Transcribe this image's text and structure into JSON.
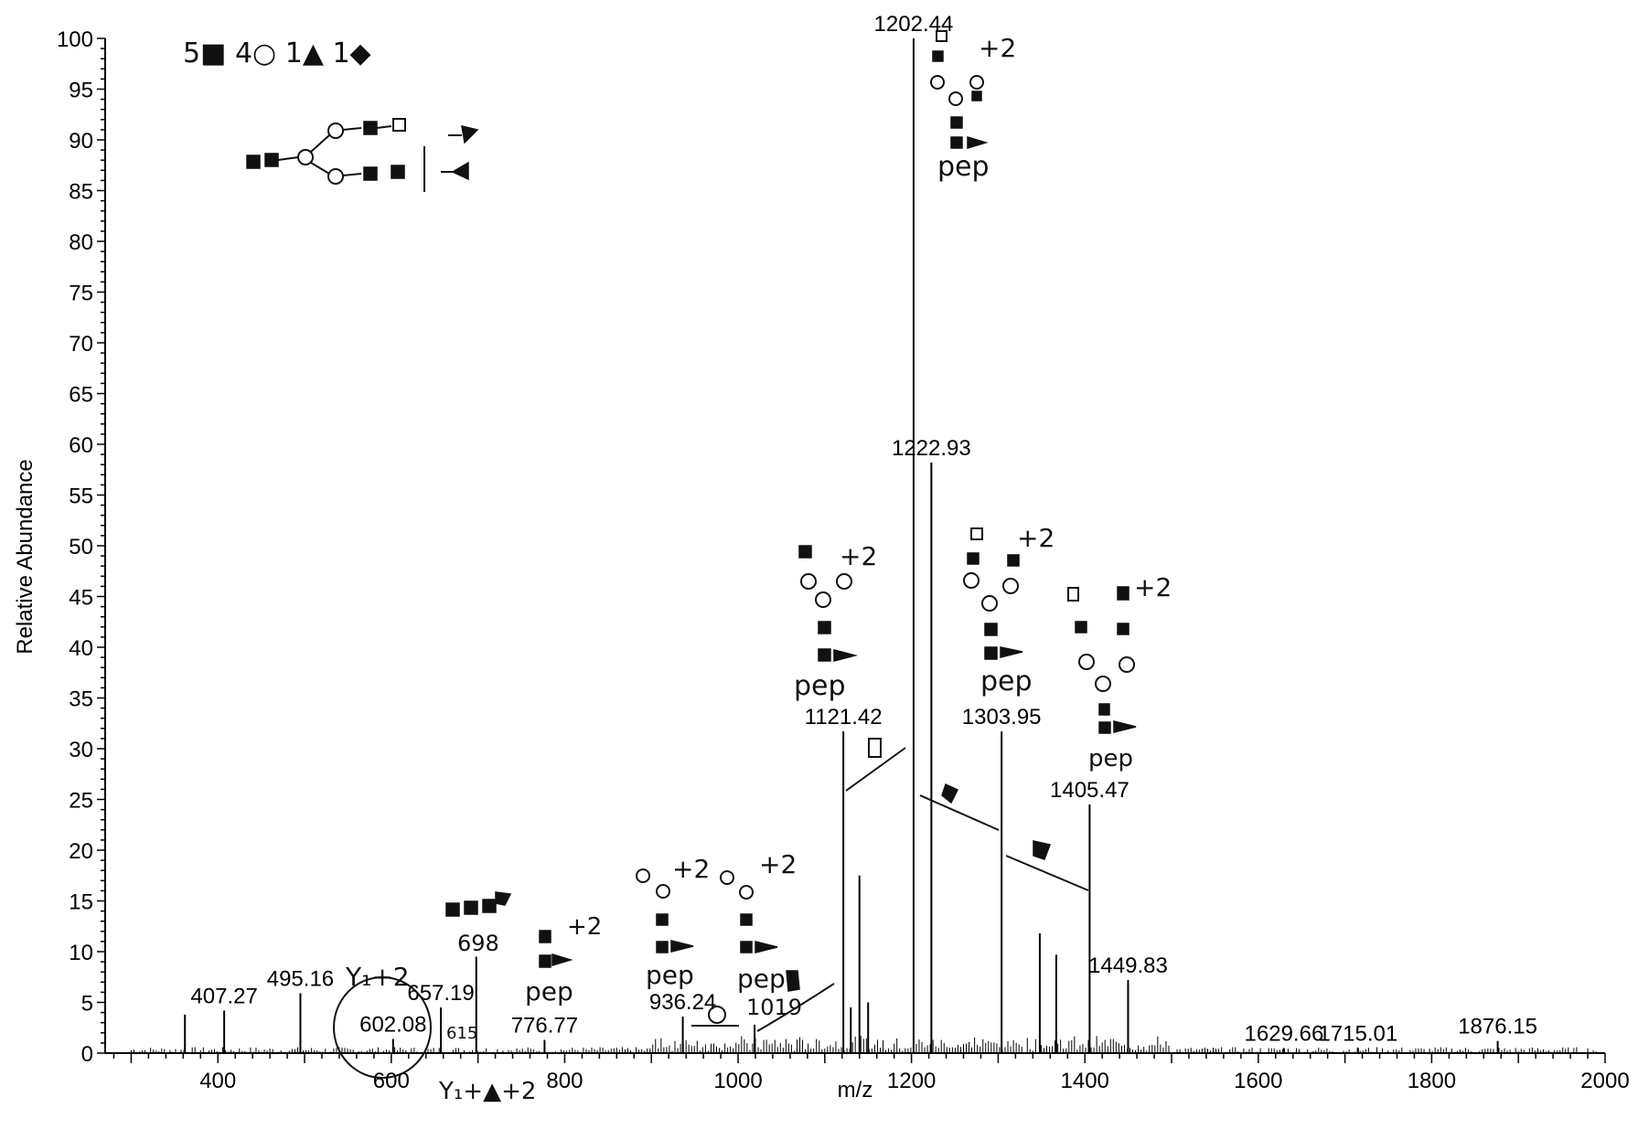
{
  "chart_data": {
    "type": "line",
    "xlabel": "m/z",
    "ylabel": "Relative Abundance",
    "xlim": [
      270,
      2000
    ],
    "ylim": [
      0,
      100
    ],
    "x_ticks": [
      400,
      600,
      800,
      1000,
      1200,
      1400,
      1600,
      1800,
      2000
    ],
    "y_ticks": [
      0,
      5,
      10,
      15,
      20,
      25,
      30,
      35,
      40,
      45,
      50,
      55,
      60,
      65,
      70,
      75,
      80,
      85,
      90,
      95,
      100
    ],
    "peaks": [
      {
        "mz": 362.0,
        "intensity": 3.8,
        "label": ""
      },
      {
        "mz": 407.27,
        "intensity": 4.2,
        "label": "407.27"
      },
      {
        "mz": 495.16,
        "intensity": 5.9,
        "label": "495.16"
      },
      {
        "mz": 602.08,
        "intensity": 1.4,
        "label": "602.08"
      },
      {
        "mz": 657.19,
        "intensity": 4.5,
        "label": "657.19"
      },
      {
        "mz": 698.0,
        "intensity": 9.5,
        "label": ""
      },
      {
        "mz": 776.77,
        "intensity": 1.3,
        "label": "776.77"
      },
      {
        "mz": 936.24,
        "intensity": 3.6,
        "label": "936.24"
      },
      {
        "mz": 1019.0,
        "intensity": 2.8,
        "label": ""
      },
      {
        "mz": 1121.42,
        "intensity": 31.7,
        "label": "1121.42"
      },
      {
        "mz": 1130.0,
        "intensity": 4.5,
        "label": ""
      },
      {
        "mz": 1140.0,
        "intensity": 17.5,
        "label": ""
      },
      {
        "mz": 1150.0,
        "intensity": 5.0,
        "label": ""
      },
      {
        "mz": 1202.44,
        "intensity": 100,
        "label": "1202.44"
      },
      {
        "mz": 1222.93,
        "intensity": 58.2,
        "label": "1222.93"
      },
      {
        "mz": 1303.95,
        "intensity": 31.7,
        "label": "1303.95"
      },
      {
        "mz": 1348.0,
        "intensity": 11.8,
        "label": ""
      },
      {
        "mz": 1367.0,
        "intensity": 9.7,
        "label": ""
      },
      {
        "mz": 1405.47,
        "intensity": 24.5,
        "label": "1405.47"
      },
      {
        "mz": 1449.83,
        "intensity": 7.2,
        "label": "1449.83"
      },
      {
        "mz": 1629.66,
        "intensity": 0.5,
        "label": "1629.66"
      },
      {
        "mz": 1715.01,
        "intensity": 0.5,
        "label": "1715.01"
      },
      {
        "mz": 1876.15,
        "intensity": 1.2,
        "label": "1876.15"
      }
    ],
    "annotations": {
      "composition": "5■ 4○ 1▲ 1◆",
      "y1_2": "Y₁+2",
      "y1_fuc_2": "Y₁+▲+2",
      "n698": "698",
      "n615": "615",
      "n1019": "1019",
      "charge": "+2",
      "pep": "pep"
    }
  }
}
